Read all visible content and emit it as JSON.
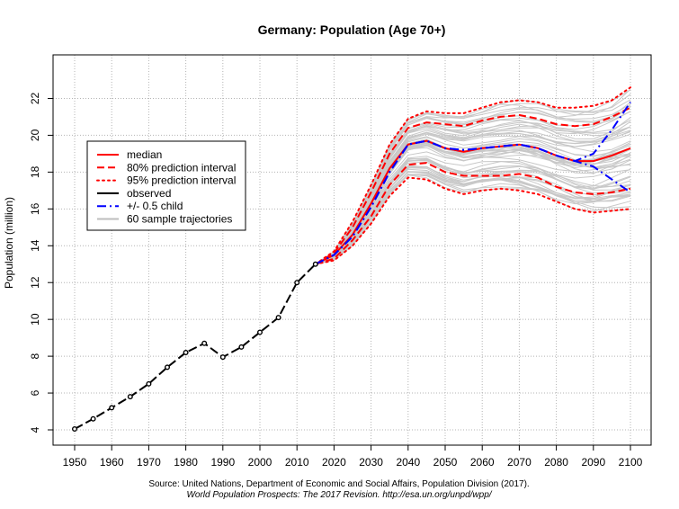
{
  "chart_data": {
    "type": "line",
    "title": "Germany: Population (Age 70+)",
    "xlabel": "",
    "ylabel": "Population (million)",
    "xlim": [
      1950,
      2100
    ],
    "ylim": [
      4,
      23
    ],
    "xticks": [
      1950,
      1960,
      1970,
      1980,
      1990,
      2000,
      2010,
      2020,
      2030,
      2040,
      2050,
      2060,
      2070,
      2080,
      2090,
      2100
    ],
    "yticks": [
      4,
      6,
      8,
      10,
      12,
      14,
      16,
      18,
      20,
      22
    ],
    "grid": true,
    "legend_position": "left",
    "legend": [
      {
        "label": "median",
        "color": "#ff0000",
        "style": "solid"
      },
      {
        "label": "80% prediction interval",
        "color": "#ff0000",
        "style": "dashed"
      },
      {
        "label": "95% prediction interval",
        "color": "#ff0000",
        "style": "dotted"
      },
      {
        "label": "observed",
        "color": "#000000",
        "style": "solid"
      },
      {
        "label": "+/- 0.5 child",
        "color": "#0000ff",
        "style": "dashdot"
      },
      {
        "label": "60 sample trajectories",
        "color": "#bebebe",
        "style": "solid"
      }
    ],
    "series": [
      {
        "name": "observed",
        "color": "#000000",
        "x": [
          1950,
          1955,
          1960,
          1965,
          1970,
          1975,
          1980,
          1985,
          1990,
          1995,
          2000,
          2005,
          2010,
          2015
        ],
        "values": [
          4.05,
          4.6,
          5.2,
          5.8,
          6.5,
          7.4,
          8.2,
          8.7,
          7.95,
          8.5,
          9.3,
          10.1,
          12.0,
          13.0
        ]
      },
      {
        "name": "median",
        "color": "#ff0000",
        "x": [
          2015,
          2020,
          2025,
          2030,
          2035,
          2040,
          2045,
          2050,
          2055,
          2060,
          2065,
          2070,
          2075,
          2080,
          2085,
          2090,
          2095,
          2100
        ],
        "values": [
          13.0,
          13.5,
          14.6,
          16.3,
          18.2,
          19.5,
          19.7,
          19.3,
          19.1,
          19.3,
          19.4,
          19.5,
          19.3,
          18.9,
          18.6,
          18.6,
          18.9,
          19.3
        ]
      },
      {
        "name": "80% upper",
        "color": "#ff0000",
        "x": [
          2015,
          2020,
          2025,
          2030,
          2035,
          2040,
          2045,
          2050,
          2055,
          2060,
          2065,
          2070,
          2075,
          2080,
          2085,
          2090,
          2095,
          2100
        ],
        "values": [
          13.0,
          13.6,
          15.0,
          16.9,
          19.0,
          20.4,
          20.7,
          20.6,
          20.5,
          20.8,
          21.0,
          21.1,
          20.9,
          20.6,
          20.5,
          20.6,
          21.0,
          21.5
        ]
      },
      {
        "name": "80% lower",
        "color": "#ff0000",
        "x": [
          2015,
          2020,
          2025,
          2030,
          2035,
          2040,
          2045,
          2050,
          2055,
          2060,
          2065,
          2070,
          2075,
          2080,
          2085,
          2090,
          2095,
          2100
        ],
        "values": [
          13.0,
          13.3,
          14.3,
          15.6,
          17.3,
          18.4,
          18.5,
          18.0,
          17.8,
          17.8,
          17.8,
          17.9,
          17.7,
          17.2,
          16.9,
          16.8,
          16.9,
          17.1
        ]
      },
      {
        "name": "95% upper",
        "color": "#ff0000",
        "x": [
          2015,
          2020,
          2025,
          2030,
          2035,
          2040,
          2045,
          2050,
          2055,
          2060,
          2065,
          2070,
          2075,
          2080,
          2085,
          2090,
          2095,
          2100
        ],
        "values": [
          13.0,
          13.7,
          15.3,
          17.3,
          19.5,
          20.9,
          21.3,
          21.2,
          21.2,
          21.5,
          21.8,
          21.9,
          21.8,
          21.5,
          21.5,
          21.6,
          21.9,
          22.6
        ]
      },
      {
        "name": "95% lower",
        "color": "#ff0000",
        "x": [
          2015,
          2020,
          2025,
          2030,
          2035,
          2040,
          2045,
          2050,
          2055,
          2060,
          2065,
          2070,
          2075,
          2080,
          2085,
          2090,
          2095,
          2100
        ],
        "values": [
          13.0,
          13.2,
          14.0,
          15.2,
          16.7,
          17.7,
          17.6,
          17.1,
          16.8,
          17.0,
          17.1,
          17.0,
          16.8,
          16.4,
          16.0,
          15.8,
          15.9,
          16.0
        ]
      },
      {
        "name": "+0.5 child",
        "color": "#0000ff",
        "x": [
          2015,
          2020,
          2025,
          2030,
          2035,
          2040,
          2045,
          2050,
          2055,
          2060,
          2065,
          2070,
          2075,
          2080,
          2085,
          2090,
          2095,
          2100
        ],
        "values": [
          13.0,
          13.5,
          14.5,
          16.1,
          18.0,
          19.5,
          19.7,
          19.3,
          19.2,
          19.3,
          19.4,
          19.5,
          19.3,
          18.9,
          18.6,
          19.0,
          20.3,
          21.8
        ]
      },
      {
        "name": "-0.5 child",
        "color": "#0000ff",
        "x": [
          2015,
          2020,
          2025,
          2030,
          2035,
          2040,
          2045,
          2050,
          2055,
          2060,
          2065,
          2070,
          2075,
          2080,
          2085,
          2090,
          2095,
          2100
        ],
        "values": [
          13.0,
          13.5,
          14.5,
          16.1,
          18.0,
          19.5,
          19.7,
          19.3,
          19.2,
          19.3,
          19.4,
          19.5,
          19.3,
          18.9,
          18.6,
          18.3,
          17.6,
          16.9
        ]
      }
    ],
    "trajectories_count": 60
  },
  "source": {
    "line1": "Source: United Nations, Department of Economic and Social Affairs, Population Division (2017).",
    "line2": "World Population Prospects: The 2017 Revision. http://esa.un.org/unpd/wpp/"
  }
}
